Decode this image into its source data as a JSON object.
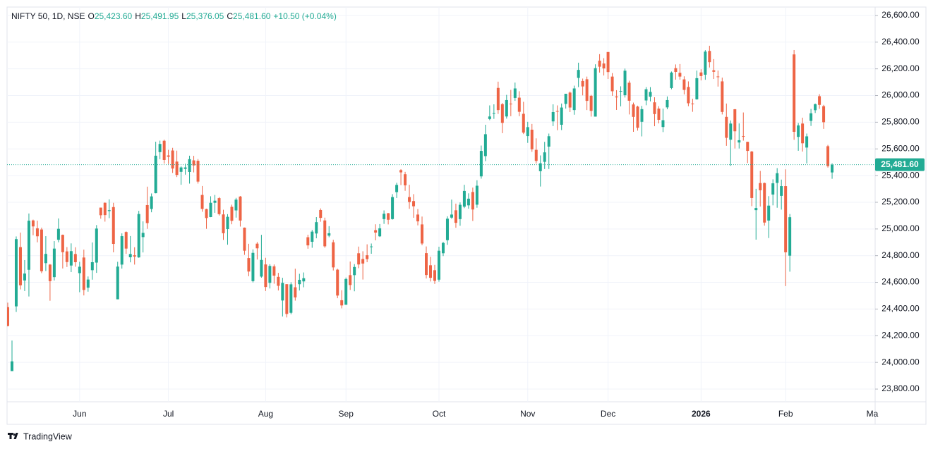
{
  "header": {
    "title": "NIFTY 50, 1D, NSE",
    "fields": [
      {
        "key": "O",
        "value": "25,423.60"
      },
      {
        "key": "H",
        "value": "25,491.95"
      },
      {
        "key": "L",
        "value": "25,376.05"
      },
      {
        "key": "C",
        "value": "25,481.60"
      }
    ],
    "change": "+10.50 (+0.04%)"
  },
  "brand": "TradingView",
  "x_edge_label": "Ma",
  "chart_data": {
    "type": "candlestick",
    "up_color": "#22ab94",
    "down_color": "#ee6445",
    "grid": true,
    "ylim": [
      23705,
      26663
    ],
    "yticks": [
      {
        "value": 23800,
        "label": "23,800.00"
      },
      {
        "value": 24000,
        "label": "24,000.00"
      },
      {
        "value": 24200,
        "label": "24,200.00"
      },
      {
        "value": 24400,
        "label": "24,400.00"
      },
      {
        "value": 24600,
        "label": "24,600.00"
      },
      {
        "value": 24800,
        "label": "24,800.00"
      },
      {
        "value": 25000,
        "label": "25,000.00"
      },
      {
        "value": 25200,
        "label": "25,200.00"
      },
      {
        "value": 25400,
        "label": "25,400.00"
      },
      {
        "value": 25600,
        "label": "25,600.00"
      },
      {
        "value": 25800,
        "label": "25,800.00"
      },
      {
        "value": 26000,
        "label": "26,000.00"
      },
      {
        "value": 26200,
        "label": "26,200.00"
      },
      {
        "value": 26400,
        "label": "26,400.00"
      },
      {
        "value": 26600,
        "label": "26,600.00"
      }
    ],
    "last_price": {
      "value": 25481.6,
      "label": "25,481.60"
    },
    "categories": [
      null,
      null,
      null,
      null,
      null,
      null,
      null,
      null,
      null,
      null,
      null,
      null,
      null,
      null,
      null,
      null,
      null,
      "Jun",
      null,
      null,
      null,
      null,
      null,
      null,
      null,
      null,
      null,
      null,
      null,
      null,
      null,
      null,
      null,
      null,
      null,
      null,
      null,
      null,
      "Jul",
      null,
      null,
      null,
      null,
      null,
      null,
      null,
      null,
      null,
      null,
      null,
      null,
      null,
      null,
      null,
      null,
      null,
      null,
      null,
      null,
      null,
      null,
      "Aug",
      null,
      null,
      null,
      null,
      null,
      null,
      null,
      null,
      null,
      null,
      null,
      null,
      null,
      null,
      null,
      null,
      null,
      null,
      "Sep",
      null,
      null,
      null,
      null,
      null,
      null,
      null,
      null,
      null,
      null,
      null,
      null,
      null,
      null,
      null,
      null,
      null,
      null,
      null,
      null,
      null,
      "Oct",
      null,
      null,
      null,
      null,
      null,
      null,
      null,
      null,
      null,
      null,
      null,
      null,
      null,
      null,
      null,
      null,
      null,
      null,
      null,
      null,
      "Nov",
      null,
      null,
      null,
      null,
      null,
      null,
      null,
      null,
      null,
      null,
      null,
      null,
      null,
      null,
      null,
      null,
      null,
      null,
      "Dec",
      null,
      null,
      null,
      null,
      null,
      null,
      null,
      null,
      null,
      null,
      null,
      null,
      null,
      null,
      null,
      null,
      null,
      null,
      null,
      null,
      null,
      "2026",
      null,
      null,
      null,
      null,
      null,
      null,
      null,
      null,
      null,
      null,
      null,
      null,
      null,
      null,
      null,
      null,
      null,
      null,
      null,
      "Feb",
      null,
      null,
      null,
      null,
      null,
      null,
      null,
      null,
      null,
      null,
      null
    ],
    "candles": [
      [
        24414,
        24448,
        24270,
        24273
      ],
      [
        23935,
        24164,
        23935,
        24008
      ],
      [
        24420,
        24944,
        24378,
        24924
      ],
      [
        24864,
        24973,
        24547,
        24578
      ],
      [
        24614,
        24767,
        24535,
        24666
      ],
      [
        24694,
        25116,
        24494,
        25062
      ],
      [
        25064,
        25070,
        24953,
        25019
      ],
      [
        25005,
        25062,
        24900,
        24945
      ],
      [
        24996,
        25010,
        24669,
        24683
      ],
      [
        24744,
        24946,
        24685,
        24813
      ],
      [
        24733,
        24737,
        24462,
        24609
      ],
      [
        24639,
        24909,
        24614,
        24853
      ],
      [
        24919,
        25079,
        24900,
        25001
      ],
      [
        24956,
        24958,
        24704,
        24826
      ],
      [
        24832,
        24864,
        24715,
        24752
      ],
      [
        24726,
        24892,
        24677,
        24834
      ],
      [
        24812,
        24863,
        24717,
        24751
      ],
      [
        24669,
        24754,
        24526,
        24717
      ],
      [
        24786,
        24845,
        24502,
        24543
      ],
      [
        24560,
        24644,
        24530,
        24621
      ],
      [
        24691,
        24899,
        24620,
        24751
      ],
      [
        24748,
        25029,
        24671,
        25003
      ],
      [
        25160,
        25160,
        25077,
        25103
      ],
      [
        25196,
        25199,
        25055,
        25104
      ],
      [
        25134,
        25222,
        25081,
        25141
      ],
      [
        25164,
        25196,
        24825,
        24888
      ],
      [
        24473,
        24754,
        24473,
        24718
      ],
      [
        24733,
        24967,
        24703,
        24946
      ],
      [
        24977,
        24982,
        24813,
        24853
      ],
      [
        24788,
        24947,
        24750,
        24812
      ],
      [
        24803,
        24863,
        24733,
        24793
      ],
      [
        24787,
        25136,
        24784,
        25112
      ],
      [
        24939,
        25057,
        24824,
        24971
      ],
      [
        25179,
        25317,
        25001,
        25044
      ],
      [
        25150,
        25266,
        25125,
        25244
      ],
      [
        25268,
        25654,
        25267,
        25549
      ],
      [
        25576,
        25662,
        25523,
        25637
      ],
      [
        25661,
        25669,
        25490,
        25517
      ],
      [
        25551,
        25593,
        25487,
        25541
      ],
      [
        25588,
        25608,
        25420,
        25453
      ],
      [
        25505,
        25587,
        25389,
        25405
      ],
      [
        25428,
        25470,
        25331,
        25461
      ],
      [
        25450,
        25489,
        25407,
        25461
      ],
      [
        25427,
        25549,
        25340,
        25523
      ],
      [
        25514,
        25548,
        25424,
        25476
      ],
      [
        25511,
        25524,
        25340,
        25355
      ],
      [
        25255,
        25322,
        25129,
        25150
      ],
      [
        25149,
        25152,
        25001,
        25082
      ],
      [
        25089,
        25245,
        25088,
        25196
      ],
      [
        25196,
        25255,
        25121,
        25212
      ],
      [
        25231,
        25239,
        25101,
        25111
      ],
      [
        25109,
        25144,
        24918,
        24968
      ],
      [
        24999,
        25111,
        24882,
        25091
      ],
      [
        25166,
        25182,
        25035,
        25061
      ],
      [
        25139,
        25233,
        25085,
        25220
      ],
      [
        25243,
        25247,
        25018,
        25063
      ],
      [
        25010,
        25011,
        24806,
        24837
      ],
      [
        24782,
        24889,
        24646,
        24681
      ],
      [
        24609,
        24847,
        24599,
        24821
      ],
      [
        24890,
        24902,
        24771,
        24855
      ],
      [
        24643,
        24956,
        24635,
        24768
      ],
      [
        24734,
        24784,
        24535,
        24565
      ],
      [
        24596,
        24736,
        24554,
        24723
      ],
      [
        24720,
        24734,
        24590,
        24650
      ],
      [
        24641,
        24671,
        24539,
        24574
      ],
      [
        24464,
        24634,
        24344,
        24596
      ],
      [
        24586,
        24587,
        24337,
        24363
      ],
      [
        24372,
        24601,
        24360,
        24585
      ],
      [
        24563,
        24702,
        24463,
        24487
      ],
      [
        24586,
        24664,
        24539,
        24619
      ],
      [
        24607,
        24674,
        24563,
        24631
      ],
      [
        24938,
        24957,
        24852,
        24877
      ],
      [
        24904,
        24993,
        24859,
        24980
      ],
      [
        24966,
        25089,
        24930,
        25051
      ],
      [
        25142,
        25154,
        25054,
        25083
      ],
      [
        25064,
        25085,
        24859,
        24870
      ],
      [
        24950,
        25021,
        24938,
        24968
      ],
      [
        24900,
        24919,
        24689,
        24712
      ],
      [
        24695,
        24702,
        24481,
        24501
      ],
      [
        24466,
        24541,
        24405,
        24427
      ],
      [
        24432,
        24636,
        24432,
        24625
      ],
      [
        24654,
        24756,
        24543,
        24580
      ],
      [
        24654,
        24737,
        24533,
        24715
      ],
      [
        24818,
        24868,
        24706,
        24734
      ],
      [
        24775,
        24833,
        24621,
        24741
      ],
      [
        24803,
        24885,
        24751,
        24774
      ],
      [
        24864,
        24891,
        24814,
        24869
      ],
      [
        24991,
        25035,
        24915,
        24973
      ],
      [
        24945,
        25037,
        24940,
        25005
      ],
      [
        25074,
        25139,
        25038,
        25114
      ],
      [
        25118,
        25120,
        25034,
        25069
      ],
      [
        25074,
        25261,
        25070,
        25239
      ],
      [
        25276,
        25346,
        25232,
        25330
      ],
      [
        25441,
        25448,
        25329,
        25424
      ],
      [
        25410,
        25428,
        25286,
        25327
      ],
      [
        25239,
        25331,
        25151,
        25202
      ],
      [
        25209,
        25261,
        25084,
        25170
      ],
      [
        25108,
        25149,
        25027,
        25057
      ],
      [
        25034,
        25093,
        24878,
        24891
      ],
      [
        24819,
        24869,
        24629,
        24655
      ],
      [
        24728,
        24791,
        24606,
        24634
      ],
      [
        24691,
        24731,
        24588,
        24611
      ],
      [
        24620,
        24867,
        24605,
        24837
      ],
      [
        24818,
        24904,
        24797,
        24895
      ],
      [
        24916,
        25095,
        24881,
        25077
      ],
      [
        25085,
        25220,
        25076,
        25108
      ],
      [
        25140,
        25190,
        25009,
        25046
      ],
      [
        25074,
        25199,
        25024,
        25181
      ],
      [
        25167,
        25331,
        25156,
        25285
      ],
      [
        25177,
        25267,
        25152,
        25227
      ],
      [
        25277,
        25310,
        25060,
        25146
      ],
      [
        25182,
        25365,
        25159,
        25324
      ],
      [
        25394,
        25625,
        25377,
        25585
      ],
      [
        25546,
        25781,
        25508,
        25710
      ],
      [
        25824,
        25926,
        25815,
        25843
      ],
      [
        25868,
        25934,
        25825,
        25869
      ],
      [
        26057,
        26104,
        25862,
        25891
      ],
      [
        25935,
        25944,
        25718,
        25795
      ],
      [
        25843,
        26005,
        25827,
        25966
      ],
      [
        25939,
        26042,
        25845,
        25936
      ],
      [
        25982,
        26097,
        25960,
        26053
      ],
      [
        25984,
        26032,
        25845,
        25878
      ],
      [
        25863,
        25953,
        25711,
        25722
      ],
      [
        25696,
        25803,
        25645,
        25763
      ],
      [
        25744,
        25787,
        25578,
        25597
      ],
      [
        25593,
        25679,
        25491,
        25510
      ],
      [
        25433,
        25551,
        25318,
        25492
      ],
      [
        25503,
        25653,
        25449,
        25574
      ],
      [
        25617,
        25715,
        25449,
        25695
      ],
      [
        25806,
        25934,
        25771,
        25876
      ],
      [
        25884,
        25926,
        25740,
        25879
      ],
      [
        25781,
        25940,
        25741,
        25910
      ],
      [
        25937,
        26013,
        25902,
        26013
      ],
      [
        26022,
        26030,
        25876,
        25910
      ],
      [
        25891,
        26074,
        25856,
        26053
      ],
      [
        26132,
        26246,
        26063,
        26192
      ],
      [
        26109,
        26127,
        26001,
        26068
      ],
      [
        26122,
        26142,
        25891,
        25960
      ],
      [
        25998,
        26005,
        25842,
        25885
      ],
      [
        25842,
        26234,
        25842,
        26205
      ],
      [
        26261,
        26310,
        26172,
        26216
      ],
      [
        26240,
        26280,
        26150,
        26203
      ],
      [
        26326,
        26326,
        26124,
        26176
      ],
      [
        26142,
        26168,
        25998,
        26032
      ],
      [
        25993,
        26040,
        25892,
        25986
      ],
      [
        26029,
        26069,
        25919,
        26034
      ],
      [
        26002,
        26202,
        25985,
        26186
      ],
      [
        26096,
        26111,
        25858,
        25961
      ],
      [
        25933,
        25947,
        25728,
        25840
      ],
      [
        25917,
        25924,
        25737,
        25758
      ],
      [
        25803,
        25922,
        25694,
        25898
      ],
      [
        25963,
        26063,
        25927,
        26047
      ],
      [
        25991,
        26063,
        25956,
        26027
      ],
      [
        25949,
        25987,
        25770,
        25861
      ],
      [
        25902,
        25920,
        25791,
        25818
      ],
      [
        25764,
        25902,
        25726,
        25815
      ],
      [
        25911,
        25993,
        25897,
        25966
      ],
      [
        26056,
        26180,
        26047,
        26172
      ],
      [
        26205,
        26233,
        26119,
        26177
      ],
      [
        26170,
        26236,
        26119,
        26142
      ],
      [
        26121,
        26144,
        26008,
        26042
      ],
      [
        26064,
        26106,
        25920,
        25942
      ],
      [
        25940,
        25976,
        25878,
        25938
      ],
      [
        25971,
        26187,
        25969,
        26130
      ],
      [
        26173,
        26197,
        26113,
        26146
      ],
      [
        26156,
        26340,
        26118,
        26329
      ],
      [
        26334,
        26373,
        26210,
        26250
      ],
      [
        26189,
        26273,
        26124,
        26178
      ],
      [
        26143,
        26187,
        26067,
        26141
      ],
      [
        26106,
        26134,
        25858,
        25877
      ],
      [
        25840,
        25940,
        25623,
        25683
      ],
      [
        25669,
        25813,
        25473,
        25790
      ],
      [
        25897,
        25899,
        25603,
        25732
      ],
      [
        25648,
        25791,
        25603,
        25665
      ],
      [
        25696,
        25873,
        25662,
        25694
      ],
      [
        25653,
        25654,
        25494,
        25585
      ],
      [
        25580,
        25585,
        25171,
        25232
      ],
      [
        25141,
        25301,
        24920,
        25157
      ],
      [
        25344,
        25435,
        25168,
        25290
      ],
      [
        25344,
        25348,
        25025,
        25048
      ],
      [
        25063,
        25246,
        24932,
        25175
      ],
      [
        25258,
        25372,
        25177,
        25342
      ],
      [
        25345,
        25456,
        25159,
        25418
      ],
      [
        25248,
        25370,
        25145,
        25321
      ],
      [
        25321,
        25447,
        24572,
        24825
      ],
      [
        24800,
        25112,
        24680,
        25088
      ],
      [
        26308,
        26341,
        25668,
        25728
      ],
      [
        25690,
        25794,
        25586,
        25776
      ],
      [
        25790,
        25834,
        25580,
        25642
      ],
      [
        25610,
        25715,
        25491,
        25694
      ],
      [
        25810,
        25900,
        25772,
        25867
      ],
      [
        25890,
        25940,
        25869,
        25935
      ],
      [
        25995,
        26010,
        25900,
        25930
      ],
      [
        25920,
        25930,
        25750,
        25800
      ],
      [
        25620,
        25630,
        25460,
        25471.1
      ],
      [
        25423.6,
        25491.95,
        25376.05,
        25481.6
      ]
    ]
  }
}
